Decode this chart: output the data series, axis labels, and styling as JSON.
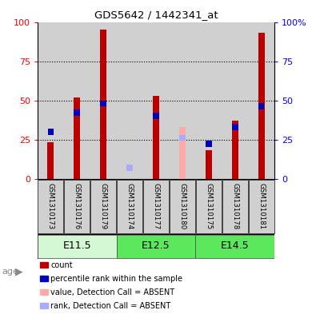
{
  "title": "GDS5642 / 1442341_at",
  "samples": [
    "GSM1310173",
    "GSM1310176",
    "GSM1310179",
    "GSM1310174",
    "GSM1310177",
    "GSM1310180",
    "GSM1310175",
    "GSM1310178",
    "GSM1310181"
  ],
  "count_values": [
    23,
    52,
    95,
    0,
    53,
    0,
    18,
    37,
    93
  ],
  "rank_values": [
    30,
    42,
    48,
    0,
    40,
    0,
    22,
    33,
    46
  ],
  "absent_value": [
    0,
    0,
    0,
    0,
    0,
    33,
    0,
    0,
    0
  ],
  "absent_rank": [
    0,
    0,
    0,
    7,
    0,
    26,
    0,
    0,
    0
  ],
  "absent_flags": [
    false,
    false,
    false,
    true,
    false,
    true,
    false,
    false,
    false
  ],
  "age_groups": [
    {
      "label": "E11.5",
      "start": 0,
      "end": 3,
      "color": "#C8F5C8"
    },
    {
      "label": "E12.5",
      "start": 3,
      "end": 6,
      "color": "#6EE86E"
    },
    {
      "label": "E14.5",
      "start": 6,
      "end": 9,
      "color": "#6EE86E"
    }
  ],
  "ylim": [
    0,
    100
  ],
  "yticks": [
    0,
    25,
    50,
    75,
    100
  ],
  "bar_color_red": "#BB0000",
  "bar_color_blue": "#0000BB",
  "bar_color_pink": "#FFAAAA",
  "bar_color_lightblue": "#AAAAFF",
  "bg_gray": "#D0D0D0",
  "bar_width": 0.25
}
